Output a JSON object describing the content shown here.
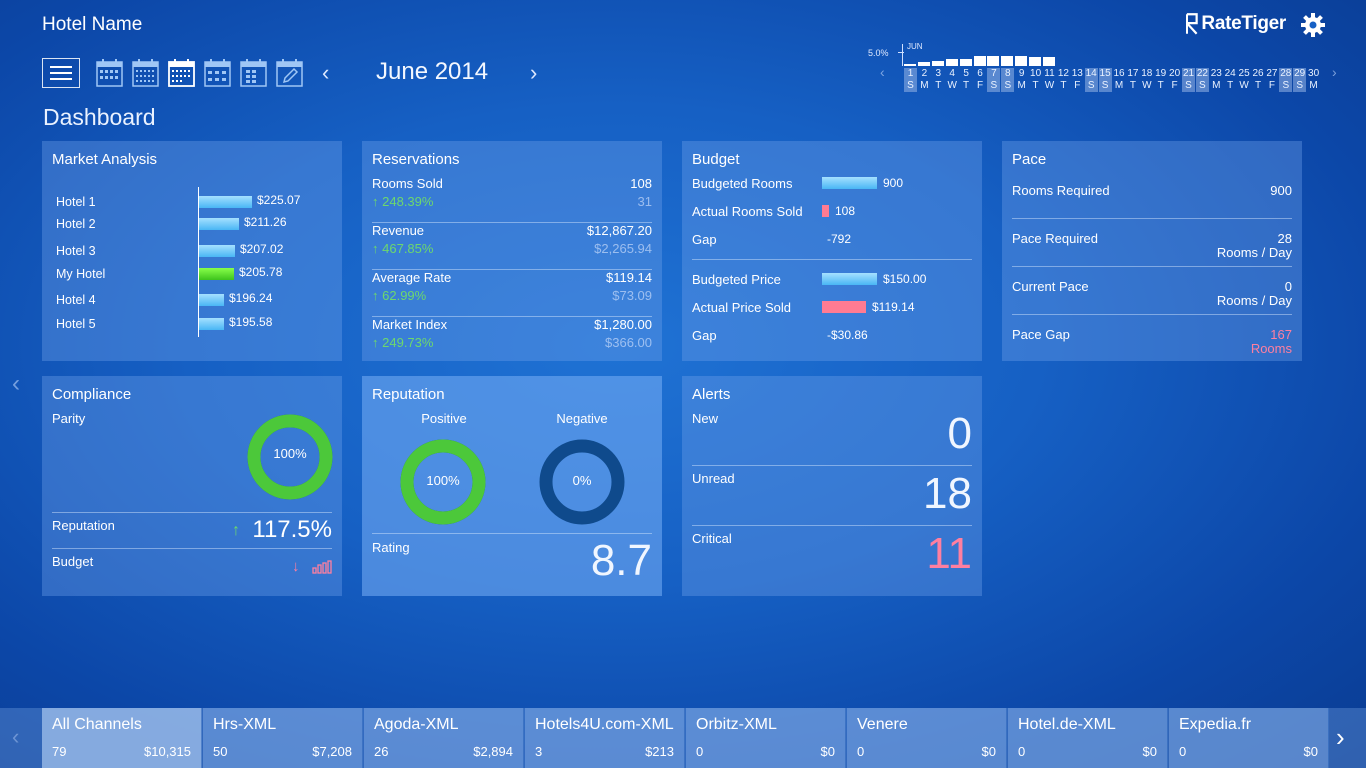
{
  "header": {
    "hotel_name": "Hotel Name",
    "logo_text": "RateTiger",
    "month": "June 2014",
    "prev_arrow": "‹",
    "next_arrow": "›"
  },
  "page_title": "Dashboard",
  "mini_calendar": {
    "percent_label": "5.0%",
    "month_label": "JUN",
    "days": [
      {
        "d": "1",
        "w": "S",
        "h": true
      },
      {
        "d": "2",
        "w": "M",
        "h": false
      },
      {
        "d": "3",
        "w": "T",
        "h": false
      },
      {
        "d": "4",
        "w": "W",
        "h": false
      },
      {
        "d": "5",
        "w": "T",
        "h": false
      },
      {
        "d": "6",
        "w": "F",
        "h": false
      },
      {
        "d": "7",
        "w": "S",
        "h": true
      },
      {
        "d": "8",
        "w": "S",
        "h": true
      },
      {
        "d": "9",
        "w": "M",
        "h": false
      },
      {
        "d": "10",
        "w": "T",
        "h": false
      },
      {
        "d": "11",
        "w": "W",
        "h": false
      },
      {
        "d": "12",
        "w": "T",
        "h": false
      },
      {
        "d": "13",
        "w": "F",
        "h": false
      },
      {
        "d": "14",
        "w": "S",
        "h": true
      },
      {
        "d": "15",
        "w": "S",
        "h": true
      },
      {
        "d": "16",
        "w": "M",
        "h": false
      },
      {
        "d": "17",
        "w": "T",
        "h": false
      },
      {
        "d": "18",
        "w": "W",
        "h": false
      },
      {
        "d": "19",
        "w": "T",
        "h": false
      },
      {
        "d": "20",
        "w": "F",
        "h": false
      },
      {
        "d": "21",
        "w": "S",
        "h": true
      },
      {
        "d": "22",
        "w": "S",
        "h": true
      },
      {
        "d": "23",
        "w": "M",
        "h": false
      },
      {
        "d": "24",
        "w": "T",
        "h": false
      },
      {
        "d": "25",
        "w": "W",
        "h": false
      },
      {
        "d": "26",
        "w": "T",
        "h": false
      },
      {
        "d": "27",
        "w": "F",
        "h": false
      },
      {
        "d": "28",
        "w": "S",
        "h": true
      },
      {
        "d": "29",
        "w": "S",
        "h": true
      },
      {
        "d": "30",
        "w": "M",
        "h": false
      }
    ],
    "occupancy": [
      0.2,
      0.3,
      0.45,
      0.55,
      0.6,
      0.8,
      0.85,
      0.8,
      0.8,
      0.75,
      0.75,
      0,
      0,
      0,
      0,
      0,
      0,
      0,
      0,
      0,
      0,
      0,
      0,
      0,
      0,
      0,
      0,
      0,
      0,
      0
    ]
  },
  "market_analysis": {
    "title": "Market Analysis",
    "hotels": [
      {
        "name": "Hotel 1",
        "value": "$225.07",
        "num": 225.07,
        "me": false
      },
      {
        "name": "Hotel 2",
        "value": "$211.26",
        "num": 211.26,
        "me": false
      },
      {
        "name": "Hotel 3",
        "value": "$207.02",
        "num": 207.02,
        "me": false
      },
      {
        "name": "My Hotel",
        "value": "$205.78",
        "num": 205.78,
        "me": true
      },
      {
        "name": "Hotel 4",
        "value": "$196.24",
        "num": 196.24,
        "me": false
      },
      {
        "name": "Hotel 5",
        "value": "$195.58",
        "num": 195.58,
        "me": false
      }
    ]
  },
  "reservations": {
    "title": "Reservations",
    "rows": [
      {
        "label": "Rooms Sold",
        "value": "108",
        "change": "248.39%",
        "prev": "31"
      },
      {
        "label": "Revenue",
        "value": "$12,867.20",
        "change": "467.85%",
        "prev": "$2,265.94"
      },
      {
        "label": "Average Rate",
        "value": "$119.14",
        "change": "62.99%",
        "prev": "$73.09"
      },
      {
        "label": "Market Index",
        "value": "$1,280.00",
        "change": "249.73%",
        "prev": "$366.00"
      }
    ]
  },
  "budget": {
    "title": "Budget",
    "budgeted_rooms_label": "Budgeted Rooms",
    "budgeted_rooms_value": "900",
    "budgeted_rooms_num": 900,
    "actual_rooms_label": "Actual Rooms Sold",
    "actual_rooms_value": "108",
    "actual_rooms_num": 108,
    "rooms_gap_label": "Gap",
    "rooms_gap_value": "-792",
    "budgeted_price_label": "Budgeted Price",
    "budgeted_price_value": "$150.00",
    "budgeted_price_num": 150,
    "actual_price_label": "Actual Price Sold",
    "actual_price_value": "$119.14",
    "actual_price_num": 119.14,
    "price_gap_label": "Gap",
    "price_gap_value": "-$30.86"
  },
  "pace": {
    "title": "Pace",
    "rooms_required_label": "Rooms Required",
    "rooms_required_value": "900",
    "pace_required_label": "Pace Required",
    "pace_required_value": "28",
    "pace_required_unit": "Rooms / Day",
    "current_pace_label": "Current Pace",
    "current_pace_value": "0",
    "current_pace_unit": "Rooms / Day",
    "pace_gap_label": "Pace Gap",
    "pace_gap_value": "167",
    "pace_gap_unit": "Rooms"
  },
  "compliance": {
    "title": "Compliance",
    "parity_label": "Parity",
    "parity_value": "100%",
    "parity_fraction": 1.0,
    "reputation_label": "Reputation",
    "reputation_value": "117.5%",
    "budget_label": "Budget"
  },
  "reputation": {
    "title": "Reputation",
    "positive_label": "Positive",
    "positive_value": "100%",
    "positive_fraction": 1.0,
    "negative_label": "Negative",
    "negative_value": "0%",
    "negative_fraction": 0.0,
    "rating_label": "Rating",
    "rating_value": "8.7"
  },
  "alerts": {
    "title": "Alerts",
    "new_label": "New",
    "new_value": "0",
    "unread_label": "Unread",
    "unread_value": "18",
    "critical_label": "Critical",
    "critical_value": "11"
  },
  "channels": [
    {
      "name": "All Channels",
      "count": "79",
      "revenue": "$10,315",
      "active": true
    },
    {
      "name": "Hrs-XML",
      "count": "50",
      "revenue": "$7,208",
      "active": false
    },
    {
      "name": "Agoda-XML",
      "count": "26",
      "revenue": "$2,894",
      "active": false
    },
    {
      "name": "Hotels4U.com-XML",
      "count": "3",
      "revenue": "$213",
      "active": false
    },
    {
      "name": "Orbitz-XML",
      "count": "0",
      "revenue": "$0",
      "active": false
    },
    {
      "name": "Venere",
      "count": "0",
      "revenue": "$0",
      "active": false
    },
    {
      "name": "Hotel.de-XML",
      "count": "0",
      "revenue": "$0",
      "active": false
    },
    {
      "name": "Expedia.fr",
      "count": "0",
      "revenue": "$0",
      "active": false
    }
  ],
  "colors": {
    "green": "#6dd86d",
    "pink": "#ff7fa0",
    "bar_blue": "#49b6f5",
    "bar_green": "#3dc41c",
    "donut_green": "#4cc83a",
    "donut_dark": "#0f4a8c"
  }
}
